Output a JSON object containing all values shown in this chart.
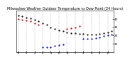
{
  "title": "Milwaukee Weather Outdoor Temperature vs Dew Point (24 Hours)",
  "title_fontsize": 3.5,
  "bg_color": "#ffffff",
  "plot_bg_color": "#ffffff",
  "grid_color": "#888888",
  "temp_color": "#000000",
  "dew_red_color": "#cc0000",
  "dew_blue_color": "#0000cc",
  "hours": [
    0,
    1,
    2,
    3,
    4,
    5,
    6,
    7,
    8,
    9,
    10,
    11,
    12,
    13,
    14,
    15,
    16,
    17,
    18,
    19,
    20,
    21,
    22,
    23
  ],
  "temp": [
    44,
    43,
    42,
    41,
    39,
    37,
    35,
    33,
    30,
    28,
    26,
    25,
    24,
    23,
    23,
    22,
    22,
    21,
    21,
    21,
    22,
    23,
    24,
    25
  ],
  "dew_vals": [
    40,
    39,
    38,
    37,
    35,
    33,
    6,
    6,
    6,
    7,
    8,
    9,
    28,
    29,
    30,
    31,
    16,
    16,
    16,
    17,
    18,
    19,
    20,
    21
  ],
  "dew_colors": [
    "r",
    "r",
    "r",
    "r",
    "r",
    "r",
    "b",
    "b",
    "b",
    "b",
    "b",
    "b",
    "r",
    "r",
    "r",
    "r",
    "b",
    "b",
    "b",
    "b",
    "b",
    "b",
    "b",
    "b"
  ],
  "ylim": [
    0,
    50
  ],
  "yticks": [
    10,
    20,
    30,
    40
  ],
  "ytick_labels": [
    "10",
    "20",
    "30",
    "40"
  ],
  "xtick_pos": [
    0,
    2,
    4,
    6,
    8,
    10,
    12,
    14,
    16,
    18,
    20,
    22
  ],
  "xtick_labels": [
    "12",
    "2",
    "4",
    "6",
    "8",
    "10",
    "12",
    "2",
    "4",
    "6",
    "8",
    "10"
  ],
  "markersize": 1.2,
  "grid_lw": 0.3,
  "spine_lw": 0.4
}
